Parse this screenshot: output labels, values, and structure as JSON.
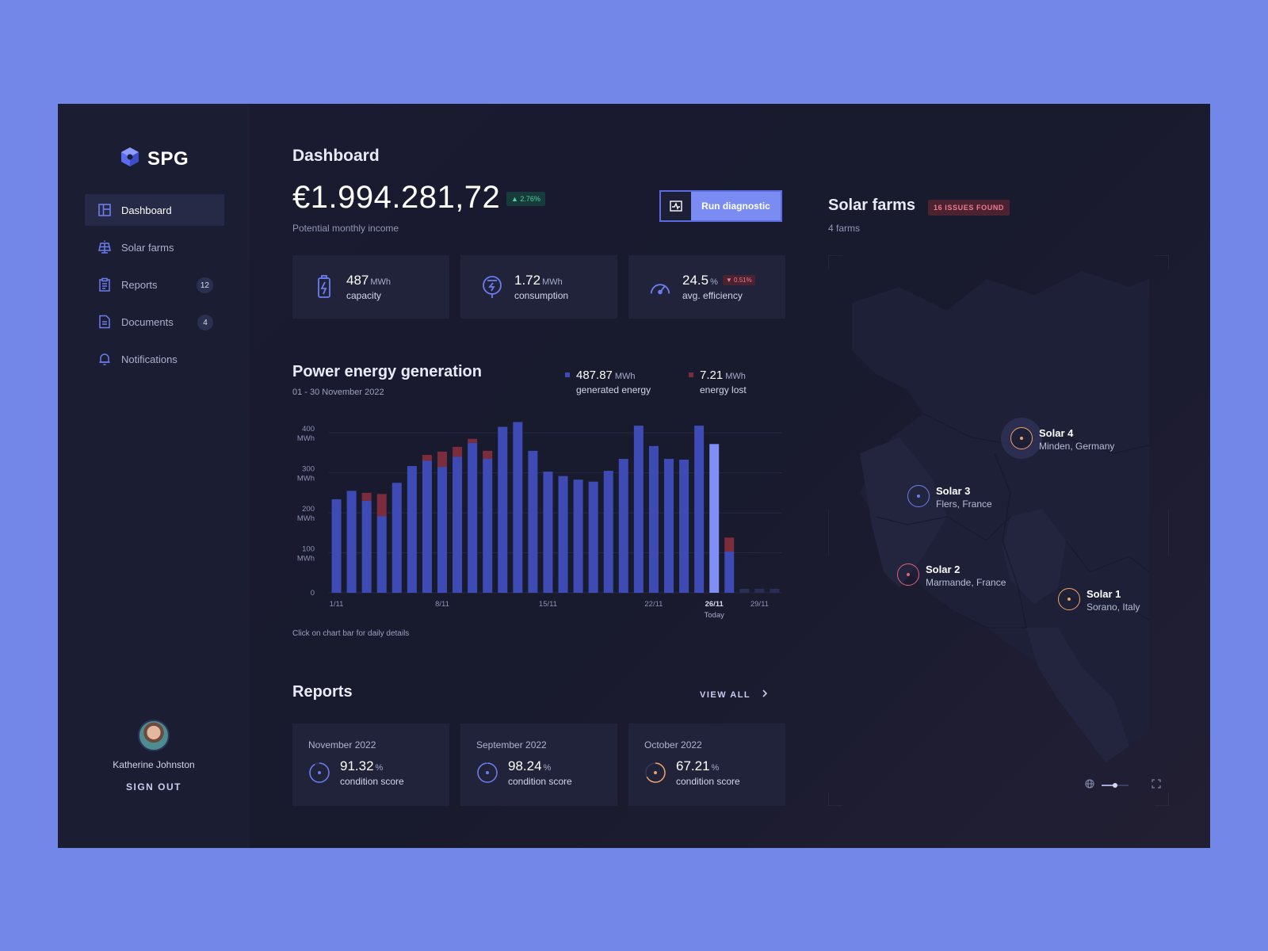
{
  "brand": {
    "name": "SPG"
  },
  "nav": {
    "items": [
      {
        "label": "Dashboard",
        "icon": "dashboard-icon",
        "active": true,
        "badge": ""
      },
      {
        "label": "Solar farms",
        "icon": "solar-panel-icon",
        "active": false,
        "badge": ""
      },
      {
        "label": "Reports",
        "icon": "clipboard-icon",
        "active": false,
        "badge": "12"
      },
      {
        "label": "Documents",
        "icon": "document-icon",
        "active": false,
        "badge": "4"
      },
      {
        "label": "Notifications",
        "icon": "bell-icon",
        "active": false,
        "badge": ""
      }
    ]
  },
  "user": {
    "name": "Katherine Johnston",
    "sign_out": "SIGN OUT"
  },
  "header": {
    "title": "Dashboard",
    "income": "€1.994.281,72",
    "income_change": "▲ 2.76%",
    "income_label": "Potential monthly income",
    "diagnostic_button": "Run diagnostic"
  },
  "stats": [
    {
      "value": "487",
      "unit": "MWh",
      "label": "capacity",
      "icon": "battery-icon",
      "badge": ""
    },
    {
      "value": "1.72",
      "unit": "MWh",
      "label": "consumption",
      "icon": "plug-icon",
      "badge": ""
    },
    {
      "value": "24.5",
      "unit": "%",
      "label": "avg. efficiency",
      "icon": "gauge-icon",
      "badge": "▼ 0.51%"
    }
  ],
  "chart": {
    "title": "Power energy generation",
    "subtitle": "01 - 30 November 2022",
    "legend": [
      {
        "value": "487.87",
        "unit": "MWh",
        "label": "generated energy",
        "color": "#3f4bb5"
      },
      {
        "value": "7.21",
        "unit": "MWh",
        "label": "energy lost",
        "color": "#7b2d3e"
      }
    ],
    "hint": "Click on chart bar for daily details",
    "today_label": "Today"
  },
  "chart_data": {
    "type": "bar",
    "stacked": true,
    "categories": [
      "1/11",
      "2/11",
      "3/11",
      "4/11",
      "5/11",
      "6/11",
      "7/11",
      "8/11",
      "9/11",
      "10/11",
      "11/11",
      "12/11",
      "13/11",
      "14/11",
      "15/11",
      "16/11",
      "17/11",
      "18/11",
      "19/11",
      "20/11",
      "21/11",
      "22/11",
      "23/11",
      "24/11",
      "25/11",
      "26/11",
      "27/11",
      "28/11",
      "29/11",
      "30/11"
    ],
    "x_tick_labels": [
      "1/11",
      "8/11",
      "15/11",
      "22/11",
      "26/11",
      "29/11"
    ],
    "y_tick_labels": [
      {
        "value": 0,
        "label": "0",
        "unit": ""
      },
      {
        "value": 100,
        "label": "100",
        "unit": "MWh"
      },
      {
        "value": 200,
        "label": "200",
        "unit": "MWh"
      },
      {
        "value": 300,
        "label": "300",
        "unit": "MWh"
      },
      {
        "value": 400,
        "label": "400",
        "unit": "MWh"
      }
    ],
    "ylim": [
      0,
      440
    ],
    "series": [
      {
        "name": "generated energy",
        "color": "#3f4bb5",
        "values": [
          234,
          255,
          230,
          192,
          275,
          317,
          330,
          315,
          340,
          375,
          335,
          415,
          427,
          355,
          303,
          292,
          283,
          278,
          305,
          335,
          418,
          367,
          335,
          333,
          418,
          372,
          103,
          10,
          10,
          10
        ]
      },
      {
        "name": "energy lost",
        "color": "#7b2d3e",
        "values": [
          0,
          0,
          20,
          55,
          0,
          0,
          15,
          38,
          25,
          10,
          20,
          0,
          0,
          0,
          0,
          0,
          0,
          0,
          0,
          0,
          0,
          0,
          0,
          0,
          0,
          0,
          35,
          0,
          0,
          0
        ]
      }
    ],
    "highlight_index": 25,
    "future_from_index": 27,
    "grid": true
  },
  "reports": {
    "title": "Reports",
    "view_all": "VIEW ALL",
    "cards": [
      {
        "month": "November 2022",
        "value": "91.32",
        "unit": "%",
        "label": "condition score",
        "color": "#6c7df0",
        "score": 91.32
      },
      {
        "month": "September 2022",
        "value": "98.24",
        "unit": "%",
        "label": "condition score",
        "color": "#6c7df0",
        "score": 98.24
      },
      {
        "month": "October 2022",
        "value": "67.21",
        "unit": "%",
        "label": "condition score",
        "color": "#f0a36a",
        "score": 67.21
      }
    ]
  },
  "farms": {
    "title": "Solar farms",
    "issues": "16 ISSUES FOUND",
    "count": "4 farms",
    "pins": [
      {
        "name": "Solar 4",
        "location": "Minden, Germany",
        "color": "#f0a36a"
      },
      {
        "name": "Solar 3",
        "location": "Flers, France",
        "color": "#6c7df0"
      },
      {
        "name": "Solar 2",
        "location": "Marmande, France",
        "color": "#e0607a"
      },
      {
        "name": "Solar 1",
        "location": "Sorano, Italy",
        "color": "#f0a36a"
      }
    ]
  }
}
